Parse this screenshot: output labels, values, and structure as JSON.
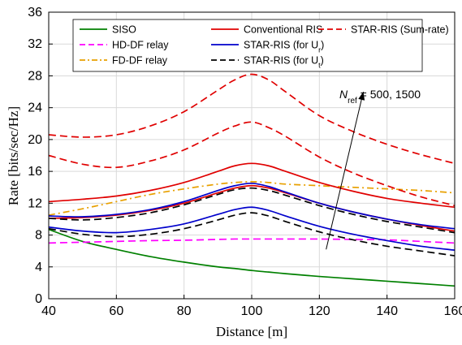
{
  "chart_data": {
    "type": "line",
    "title": "",
    "xlabel": "Distance [m]",
    "ylabel": "Rate [bits/sec/Hz]",
    "xlim": [
      40,
      160
    ],
    "ylim": [
      0,
      36
    ],
    "xticks": [
      40,
      60,
      80,
      100,
      120,
      140,
      160
    ],
    "yticks": [
      0,
      4,
      8,
      12,
      16,
      20,
      24,
      28,
      32,
      36
    ],
    "grid": true,
    "legend_position": "top",
    "legend": [
      {
        "label": "SISO",
        "color": "#008000",
        "dash": "solid"
      },
      {
        "label": "Conventional RIS",
        "color": "#e00000",
        "dash": "solid"
      },
      {
        "label": "STAR-RIS (Sum-rate)",
        "color": "#e00000",
        "dash": "dashed"
      },
      {
        "label": "HD-DF relay",
        "color": "#ff00ff",
        "dash": "dashed"
      },
      {
        "label": "STAR-RIS (for U",
        "sub": "r",
        "tail": ")",
        "color": "#0000cc",
        "dash": "solid"
      },
      {
        "label": "FD-DF relay",
        "color": "#e8a000",
        "dash": "dashdot"
      },
      {
        "label": "STAR-RIS (for U",
        "sub": "t",
        "tail": ")",
        "color": "#000000",
        "dash": "dashed"
      }
    ],
    "annotation": {
      "prefix": "N",
      "sub": "ref",
      "text": " = 500, 1500",
      "arrow_from": [
        122,
        6.2
      ],
      "arrow_to": [
        133,
        26
      ]
    },
    "x": [
      40,
      50,
      60,
      70,
      80,
      90,
      95,
      100,
      105,
      110,
      120,
      130,
      140,
      150,
      160
    ],
    "series": [
      {
        "name": "SISO",
        "color": "#008000",
        "dash": "solid",
        "values": [
          8.7,
          7.2,
          6.2,
          5.3,
          4.6,
          4.0,
          3.8,
          3.55,
          3.35,
          3.15,
          2.8,
          2.5,
          2.2,
          1.9,
          1.6
        ]
      },
      {
        "name": "HD-DF relay",
        "color": "#ff00ff",
        "dash": "dashed",
        "values": [
          7.0,
          7.1,
          7.2,
          7.3,
          7.35,
          7.45,
          7.5,
          7.5,
          7.5,
          7.5,
          7.5,
          7.45,
          7.4,
          7.2,
          7.0
        ]
      },
      {
        "name": "FD-DF relay",
        "color": "#e8a000",
        "dash": "dashdot",
        "values": [
          10.5,
          11.3,
          12.2,
          13.1,
          13.8,
          14.4,
          14.6,
          14.7,
          14.6,
          14.4,
          14.2,
          14.0,
          13.8,
          13.6,
          13.3
        ]
      },
      {
        "name": "Conventional RIS (N=1500)",
        "color": "#e00000",
        "dash": "solid",
        "values": [
          12.2,
          12.5,
          12.9,
          13.6,
          14.6,
          16.0,
          16.7,
          17.0,
          16.7,
          16.0,
          14.6,
          13.5,
          12.6,
          12.0,
          11.5
        ]
      },
      {
        "name": "Conventional RIS (N=500)",
        "color": "#e00000",
        "dash": "solid",
        "values": [
          10.1,
          10.2,
          10.5,
          11.1,
          12.0,
          13.3,
          13.9,
          14.2,
          13.9,
          13.3,
          12.0,
          10.9,
          10.0,
          9.2,
          8.5
        ]
      },
      {
        "name": "STAR-RIS (Sum-rate) (N=1500)",
        "color": "#e00000",
        "dash": "dashed",
        "values": [
          20.6,
          20.3,
          20.6,
          21.7,
          23.5,
          26.2,
          27.5,
          28.2,
          27.5,
          26.0,
          23.0,
          21.0,
          19.4,
          18.1,
          17.0
        ]
      },
      {
        "name": "STAR-RIS (Sum-rate) (N=500)",
        "color": "#e00000",
        "dash": "dashed",
        "values": [
          18.0,
          16.9,
          16.5,
          17.3,
          18.7,
          20.8,
          21.7,
          22.2,
          21.5,
          20.4,
          17.8,
          15.8,
          14.2,
          12.8,
          11.7
        ]
      },
      {
        "name": "STAR-RIS (for Ur) (N=1500)",
        "color": "#0000cc",
        "dash": "solid",
        "values": [
          10.4,
          10.3,
          10.6,
          11.2,
          12.2,
          13.6,
          14.2,
          14.5,
          14.1,
          13.4,
          12.0,
          10.9,
          10.0,
          9.3,
          8.8
        ]
      },
      {
        "name": "STAR-RIS (for Ur) (N=500)",
        "color": "#0000cc",
        "dash": "solid",
        "values": [
          9.0,
          8.5,
          8.3,
          8.7,
          9.4,
          10.6,
          11.2,
          11.5,
          11.1,
          10.4,
          9.1,
          8.1,
          7.3,
          6.6,
          6.1
        ]
      },
      {
        "name": "STAR-RIS (for Ut) (N=1500)",
        "color": "#000000",
        "dash": "dashed",
        "values": [
          10.1,
          9.9,
          10.2,
          10.8,
          11.8,
          13.1,
          13.7,
          13.9,
          13.6,
          13.0,
          11.7,
          10.6,
          9.7,
          9.0,
          8.3
        ]
      },
      {
        "name": "STAR-RIS (for Ut) (N=500)",
        "color": "#000000",
        "dash": "dashed",
        "values": [
          8.8,
          8.1,
          7.8,
          8.1,
          8.8,
          9.9,
          10.5,
          10.8,
          10.4,
          9.7,
          8.4,
          7.4,
          6.6,
          6.0,
          5.4
        ]
      }
    ]
  }
}
